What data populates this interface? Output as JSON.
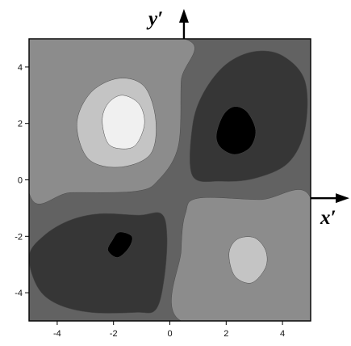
{
  "chart_data": {
    "type": "heatmap",
    "title": "",
    "xlabel": "",
    "ylabel": "",
    "xlim": [
      -5,
      5
    ],
    "ylim": [
      -5,
      5
    ],
    "x_ticks": [
      "-4",
      "-2",
      "0",
      "2",
      "4"
    ],
    "y_ticks": [
      "4",
      "2",
      "0",
      "-2",
      "-4"
    ],
    "grid": false,
    "legend": "none",
    "colormap": "grayscale",
    "levels": [
      {
        "value": -2,
        "color": "#000000"
      },
      {
        "value": -1,
        "color": "#363636"
      },
      {
        "value": 0,
        "color": "#626262"
      },
      {
        "value": 1,
        "color": "#8c8c8c"
      },
      {
        "value": 2,
        "color": "#c4c4c4"
      },
      {
        "value": 3,
        "color": "#f0f0f0"
      }
    ],
    "background_color": "#626262",
    "regions": [
      {
        "name": "upper-left band",
        "level": 1,
        "points": [
          [
            -5,
            5
          ],
          [
            0.5,
            5
          ],
          [
            0.4,
            3.5
          ],
          [
            0.3,
            1.2
          ],
          [
            -0.4,
            0
          ],
          [
            -1.2,
            -0.4
          ],
          [
            -3.5,
            -0.45
          ],
          [
            -5,
            -0.45
          ]
        ]
      },
      {
        "name": "lower-right band",
        "level": 1,
        "points": [
          [
            1,
            -0.65
          ],
          [
            3.2,
            -0.7
          ],
          [
            5,
            -0.65
          ],
          [
            5,
            -5
          ],
          [
            0.4,
            -5
          ],
          [
            0.4,
            -2.5
          ],
          [
            0.55,
            -1.2
          ]
        ]
      },
      {
        "name": "upper-left outer",
        "level": 2,
        "points": [
          [
            -3.3,
            2
          ],
          [
            -2.8,
            3.1
          ],
          [
            -1.8,
            3.6
          ],
          [
            -0.9,
            3.3
          ],
          [
            -0.5,
            2.1
          ],
          [
            -0.7,
            0.9
          ],
          [
            -1.8,
            0.45
          ],
          [
            -2.9,
            0.75
          ]
        ]
      },
      {
        "name": "upper-left core",
        "level": 3,
        "points": [
          [
            -2.4,
            2.1
          ],
          [
            -2.2,
            2.7
          ],
          [
            -1.7,
            3
          ],
          [
            -1.1,
            2.7
          ],
          [
            -0.9,
            2
          ],
          [
            -1.2,
            1.25
          ],
          [
            -1.7,
            1.1
          ],
          [
            -2.2,
            1.3
          ]
        ]
      },
      {
        "name": "lower-right inner",
        "level": 2,
        "points": [
          [
            2.1,
            -2.6
          ],
          [
            2.4,
            -2.1
          ],
          [
            3,
            -2.05
          ],
          [
            3.4,
            -2.5
          ],
          [
            3.4,
            -3.1
          ],
          [
            2.9,
            -3.65
          ],
          [
            2.3,
            -3.4
          ]
        ]
      },
      {
        "name": "upper-right lobe",
        "level": -1,
        "points": [
          [
            0.8,
            0.15
          ],
          [
            0.8,
            1.9
          ],
          [
            1.2,
            3.1
          ],
          [
            2,
            4.1
          ],
          [
            3,
            4.55
          ],
          [
            4,
            4.4
          ],
          [
            4.8,
            3.5
          ],
          [
            4.8,
            1.8
          ],
          [
            4.2,
            0.6
          ],
          [
            3,
            0.05
          ],
          [
            1.8,
            -0.05
          ]
        ]
      },
      {
        "name": "upper-right core",
        "level": -2,
        "points": [
          [
            1.65,
            1.6
          ],
          [
            1.9,
            2.3
          ],
          [
            2.3,
            2.6
          ],
          [
            2.75,
            2.4
          ],
          [
            3.05,
            1.75
          ],
          [
            2.85,
            1.15
          ],
          [
            2.3,
            0.9
          ],
          [
            1.8,
            1.15
          ]
        ]
      },
      {
        "name": "lower-left lobe",
        "level": -1,
        "points": [
          [
            -5,
            -2.7
          ],
          [
            -4.5,
            -2
          ],
          [
            -3.6,
            -1.45
          ],
          [
            -2.5,
            -1.2
          ],
          [
            -1.1,
            -1.25
          ],
          [
            -0.3,
            -1.2
          ],
          [
            -0.1,
            -2
          ],
          [
            -0.2,
            -3.5
          ],
          [
            -0.5,
            -4.6
          ],
          [
            -1.2,
            -4.7
          ],
          [
            -2.8,
            -4.7
          ],
          [
            -4,
            -4.4
          ],
          [
            -4.7,
            -3.8
          ]
        ]
      },
      {
        "name": "lower-left core",
        "level": -2,
        "points": [
          [
            -2.2,
            -2.5
          ],
          [
            -1.85,
            -2.75
          ],
          [
            -1.45,
            -2.4
          ],
          [
            -1.35,
            -2
          ],
          [
            -1.8,
            -1.85
          ],
          [
            -2.05,
            -2.15
          ]
        ]
      }
    ],
    "axis_labels": {
      "x_prime": "x′",
      "y_prime": "y′"
    },
    "rotated_axes": {
      "x_prime_at_y": -0.65,
      "y_prime_at_x": 0.5
    }
  }
}
